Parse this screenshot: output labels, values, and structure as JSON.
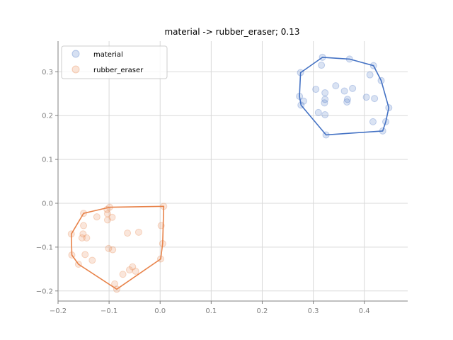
{
  "chart_data": {
    "type": "scatter",
    "title": "material -> rubber_eraser; 0.13",
    "xlabel": "",
    "ylabel": "",
    "xlim": [
      -0.2,
      0.485
    ],
    "ylim": [
      -0.223,
      0.37
    ],
    "xticks": [
      -0.2,
      -0.1,
      0.0,
      0.1,
      0.2,
      0.3,
      0.4
    ],
    "xtick_labels": [
      "−0.2",
      "−0.1",
      "0.0",
      "0.1",
      "0.2",
      "0.3",
      "0.4"
    ],
    "yticks": [
      -0.2,
      -0.1,
      0.0,
      0.1,
      0.2,
      0.3
    ],
    "ytick_labels": [
      "−0.2",
      "−0.1",
      "0.0",
      "0.1",
      "0.2",
      "0.3"
    ],
    "grid": true,
    "legend_position": "top-left",
    "series": [
      {
        "name": "material",
        "color": "#4472c4",
        "points": [
          [
            0.318,
            0.333
          ],
          [
            0.316,
            0.315
          ],
          [
            0.275,
            0.298
          ],
          [
            0.371,
            0.329
          ],
          [
            0.418,
            0.314
          ],
          [
            0.411,
            0.293
          ],
          [
            0.433,
            0.28
          ],
          [
            0.344,
            0.268
          ],
          [
            0.305,
            0.26
          ],
          [
            0.323,
            0.252
          ],
          [
            0.361,
            0.256
          ],
          [
            0.377,
            0.262
          ],
          [
            0.273,
            0.244
          ],
          [
            0.281,
            0.233
          ],
          [
            0.323,
            0.237
          ],
          [
            0.322,
            0.229
          ],
          [
            0.367,
            0.237
          ],
          [
            0.366,
            0.231
          ],
          [
            0.404,
            0.242
          ],
          [
            0.42,
            0.239
          ],
          [
            0.276,
            0.224
          ],
          [
            0.448,
            0.218
          ],
          [
            0.31,
            0.207
          ],
          [
            0.323,
            0.202
          ],
          [
            0.417,
            0.186
          ],
          [
            0.442,
            0.186
          ],
          [
            0.436,
            0.165
          ],
          [
            0.325,
            0.156
          ]
        ],
        "hull": [
          [
            0.318,
            0.333
          ],
          [
            0.371,
            0.329
          ],
          [
            0.418,
            0.314
          ],
          [
            0.433,
            0.28
          ],
          [
            0.448,
            0.218
          ],
          [
            0.442,
            0.186
          ],
          [
            0.436,
            0.165
          ],
          [
            0.325,
            0.156
          ],
          [
            0.276,
            0.224
          ],
          [
            0.273,
            0.244
          ],
          [
            0.275,
            0.298
          ]
        ]
      },
      {
        "name": "rubber_eraser",
        "color": "#e8834a",
        "points": [
          [
            0.007,
            -0.007
          ],
          [
            -0.099,
            -0.009
          ],
          [
            -0.104,
            -0.014
          ],
          [
            -0.15,
            -0.023
          ],
          [
            -0.103,
            -0.024
          ],
          [
            -0.094,
            -0.032
          ],
          [
            -0.124,
            -0.031
          ],
          [
            -0.103,
            -0.038
          ],
          [
            0.002,
            -0.051
          ],
          [
            -0.15,
            -0.051
          ],
          [
            -0.042,
            -0.066
          ],
          [
            -0.064,
            -0.068
          ],
          [
            -0.151,
            -0.07
          ],
          [
            -0.174,
            -0.07
          ],
          [
            -0.153,
            -0.079
          ],
          [
            -0.144,
            -0.079
          ],
          [
            0.005,
            -0.092
          ],
          [
            -0.101,
            -0.103
          ],
          [
            -0.093,
            -0.106
          ],
          [
            -0.147,
            -0.117
          ],
          [
            -0.173,
            -0.118
          ],
          [
            0.001,
            -0.127
          ],
          [
            -0.133,
            -0.13
          ],
          [
            -0.16,
            -0.139
          ],
          [
            -0.054,
            -0.145
          ],
          [
            -0.06,
            -0.152
          ],
          [
            -0.048,
            -0.155
          ],
          [
            -0.073,
            -0.162
          ],
          [
            -0.089,
            -0.184
          ],
          [
            -0.085,
            -0.196
          ]
        ],
        "hull": [
          [
            -0.099,
            -0.009
          ],
          [
            0.007,
            -0.007
          ],
          [
            0.005,
            -0.092
          ],
          [
            0.001,
            -0.127
          ],
          [
            -0.085,
            -0.196
          ],
          [
            -0.16,
            -0.139
          ],
          [
            -0.173,
            -0.118
          ],
          [
            -0.174,
            -0.07
          ],
          [
            -0.15,
            -0.023
          ]
        ]
      }
    ]
  }
}
